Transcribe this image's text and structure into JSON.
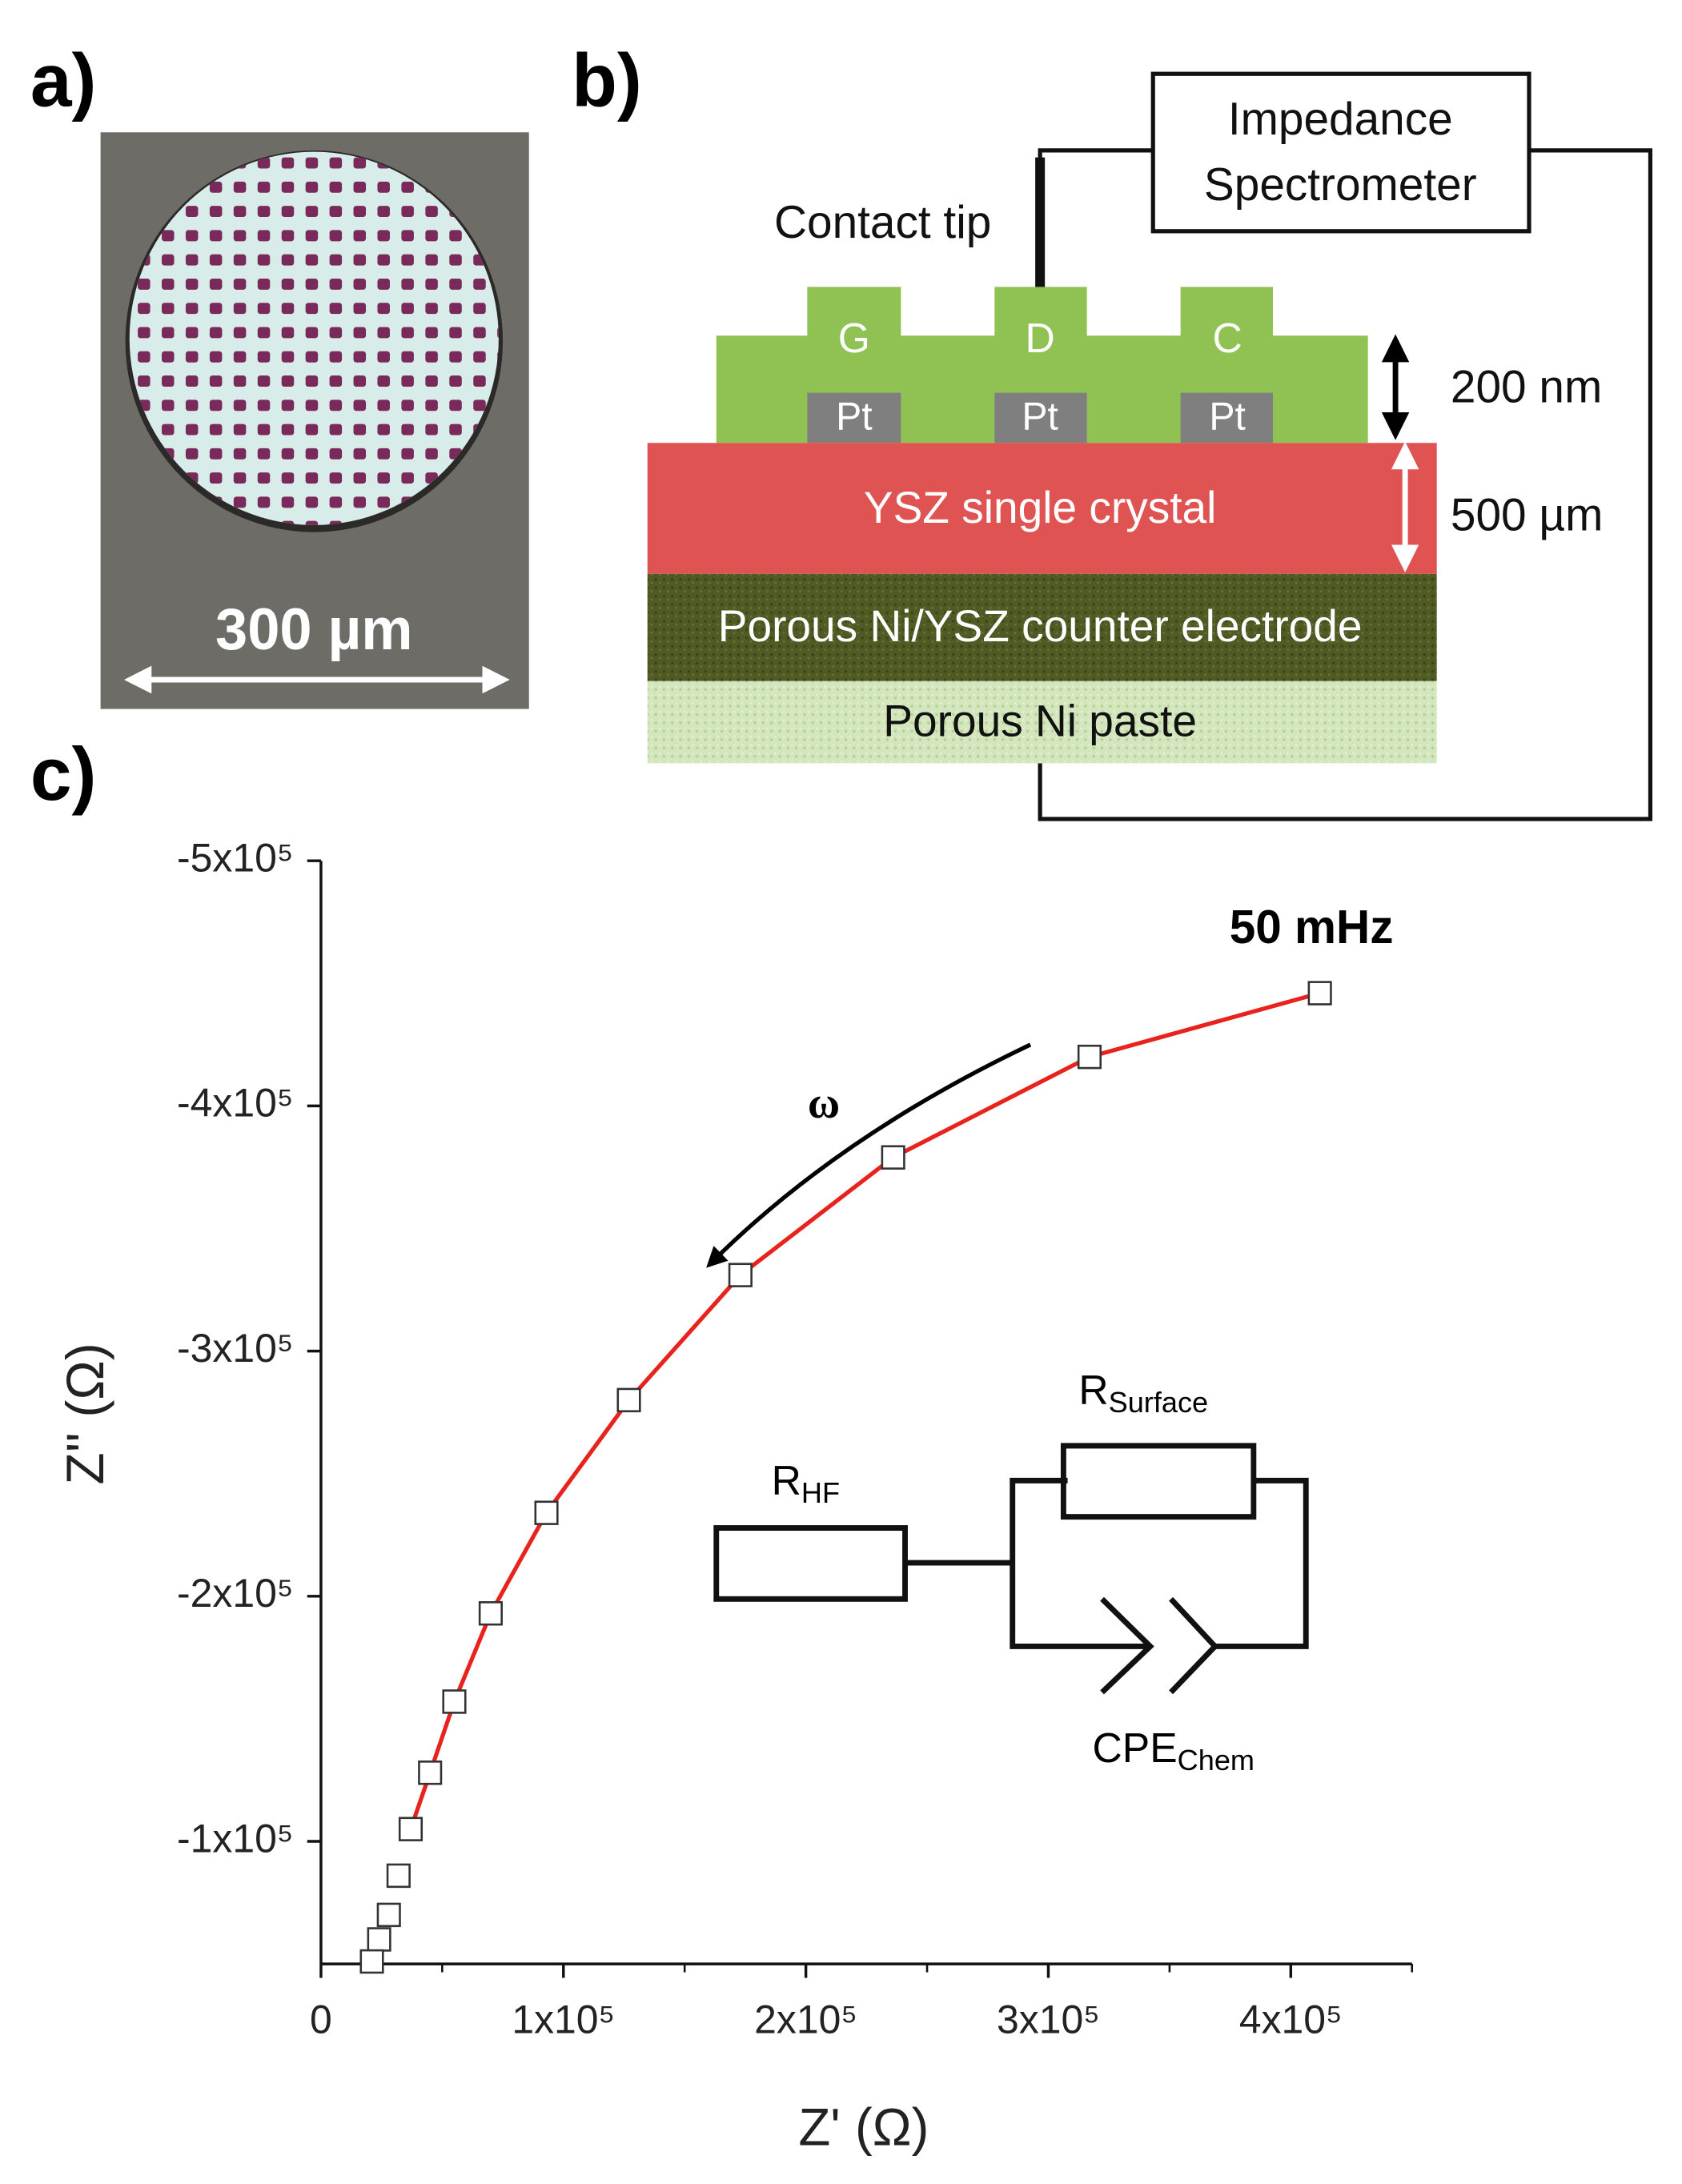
{
  "panels": {
    "a": {
      "label": "a)",
      "scale": "300 µm"
    },
    "b": {
      "label": "b)",
      "spectrometer": [
        "Impedance",
        "Spectrometer"
      ],
      "tip": "Contact tip",
      "contacts": [
        "G",
        "D",
        "C"
      ],
      "pt": [
        "Pt",
        "Pt",
        "Pt"
      ],
      "film_thickness": "200 nm",
      "crystal_thickness": "500 µm",
      "layers": [
        "YSZ single crystal",
        "Porous Ni/YSZ counter electrode",
        "Porous Ni paste"
      ]
    },
    "c": {
      "label": "c)"
    }
  },
  "chart_data": {
    "type": "scatter",
    "xlabel": "Z' (Ω)",
    "ylabel": "Z'' (Ω)",
    "xlim": [
      0,
      450000
    ],
    "ylim": [
      -50000,
      -500000
    ],
    "xticks": [
      0,
      {
        "value": 100000,
        "label": "1x10⁵"
      },
      {
        "value": 200000,
        "label": "2x10⁵"
      },
      {
        "value": 300000,
        "label": "3x10⁵"
      },
      {
        "value": 400000,
        "label": "4x10⁵"
      }
    ],
    "yticks": [
      {
        "value": -500000,
        "label": "-5x10⁵"
      },
      {
        "value": -400000,
        "label": "-4x10⁵"
      },
      {
        "value": -300000,
        "label": "-3x10⁵"
      },
      {
        "value": -200000,
        "label": "-2x10⁵"
      },
      {
        "value": -100000,
        "label": "-1x10⁵"
      }
    ],
    "series": [
      {
        "color": "#ffffff",
        "marker": "square",
        "x": [
          412000,
          317000,
          236000,
          173000,
          127000,
          93000,
          70000,
          55000,
          45000,
          37000,
          32000,
          28000,
          24000,
          21000
        ],
        "values": [
          -446000,
          -420000,
          -379000,
          -331000,
          -280000,
          -234000,
          -193000,
          -157000,
          -128000,
          -105000,
          -86000,
          -70000,
          -60000,
          -51000
        ]
      },
      {
        "color": "#e8231e",
        "marker": "line",
        "x": [
          412000,
          317000,
          236000,
          173000,
          127000,
          93000,
          70000,
          55000,
          45000,
          37000
        ],
        "values": [
          -446000,
          -420000,
          -379000,
          -331000,
          -280000,
          -234000,
          -193000,
          -157000,
          -128000,
          -105000
        ]
      }
    ],
    "annotations": {
      "frequency": "50 mHz",
      "omega": "ω",
      "circuit": {
        "r_hf": {
          "main": "R",
          "sub": "HF"
        },
        "r_surface": {
          "main": "R",
          "sub": "Surface"
        },
        "cpe": {
          "main": "CPE",
          "sub": "Chem"
        }
      }
    }
  }
}
